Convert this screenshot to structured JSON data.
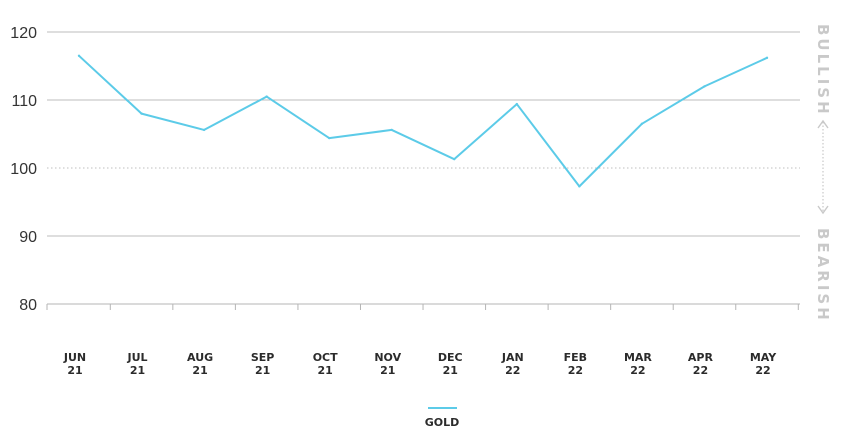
{
  "chart_data": {
    "type": "line",
    "categories": [
      "JUN 21",
      "JUL 21",
      "AUG 21",
      "SEP 21",
      "OCT 21",
      "NOV 21",
      "DEC 21",
      "JAN 22",
      "FEB 22",
      "MAR 22",
      "APR 22",
      "MAY 22"
    ],
    "category_lines": [
      [
        "JUN",
        "21"
      ],
      [
        "JUL",
        "21"
      ],
      [
        "AUG",
        "21"
      ],
      [
        "SEP",
        "21"
      ],
      [
        "OCT",
        "21"
      ],
      [
        "NOV",
        "21"
      ],
      [
        "DEC",
        "21"
      ],
      [
        "JAN",
        "22"
      ],
      [
        "FEB",
        "22"
      ],
      [
        "MAR",
        "22"
      ],
      [
        "APR",
        "22"
      ],
      [
        "MAY",
        "22"
      ]
    ],
    "series": [
      {
        "name": "GOLD",
        "color": "#5ccbe8",
        "values": [
          116.5,
          108,
          105.6,
          110.5,
          104.4,
          105.6,
          101.3,
          109.4,
          97.3,
          106.5,
          112,
          116.2
        ]
      }
    ],
    "ylim": [
      80,
      120
    ],
    "yticks": [
      80,
      90,
      100,
      110,
      120
    ],
    "reference_line": 100,
    "grid": true,
    "legend": "bottom-center",
    "side_labels": {
      "top": "BULLISH",
      "bottom": "BEARISH"
    }
  }
}
